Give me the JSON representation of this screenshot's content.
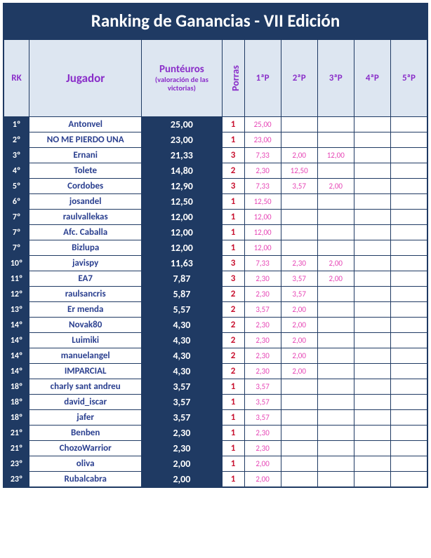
{
  "title": "Ranking de Ganancias - VII Edición",
  "colors": {
    "header_bg": "#1f3a63",
    "header_text": "#ffffff",
    "th_bg": "#dde6f1",
    "th_text": "#8a2ec9",
    "border": "#1f3a63",
    "rank_bg": "#1f3a63",
    "rank_text": "#ffffff",
    "player_text": "#2a3f8f",
    "points_bg": "#1f3a63",
    "points_text": "#ffffff",
    "porras_text": "#c8102e",
    "p_text": "#e645b5"
  },
  "headers": {
    "rk": "RK",
    "player": "Jugador",
    "points_main": "Puntéuros",
    "points_sub": "(valoración de las victorias)",
    "porras": "Porras",
    "p1": "1ªP",
    "p2": "2ªP",
    "p3": "3ªP",
    "p4": "4ªP",
    "p5": "5ªP"
  },
  "rows": [
    {
      "rk": "1º",
      "player": "Antonvel",
      "points": "25,00",
      "porras": "1",
      "p1": "25,00",
      "p2": "",
      "p3": "",
      "p4": "",
      "p5": ""
    },
    {
      "rk": "2º",
      "player": "NO ME PIERDO UNA",
      "points": "23,00",
      "porras": "1",
      "p1": "23,00",
      "p2": "",
      "p3": "",
      "p4": "",
      "p5": ""
    },
    {
      "rk": "3º",
      "player": "Ernani",
      "points": "21,33",
      "porras": "3",
      "p1": "7,33",
      "p2": "2,00",
      "p3": "12,00",
      "p4": "",
      "p5": ""
    },
    {
      "rk": "4º",
      "player": "Tolete",
      "points": "14,80",
      "porras": "2",
      "p1": "2,30",
      "p2": "12,50",
      "p3": "",
      "p4": "",
      "p5": ""
    },
    {
      "rk": "5º",
      "player": "Cordobes",
      "points": "12,90",
      "porras": "3",
      "p1": "7,33",
      "p2": "3,57",
      "p3": "2,00",
      "p4": "",
      "p5": ""
    },
    {
      "rk": "6º",
      "player": "josandel",
      "points": "12,50",
      "porras": "1",
      "p1": "12,50",
      "p2": "",
      "p3": "",
      "p4": "",
      "p5": ""
    },
    {
      "rk": "7º",
      "player": "raulvallekas",
      "points": "12,00",
      "porras": "1",
      "p1": "12,00",
      "p2": "",
      "p3": "",
      "p4": "",
      "p5": ""
    },
    {
      "rk": "7º",
      "player": "Afc. Caballa",
      "points": "12,00",
      "porras": "1",
      "p1": "12,00",
      "p2": "",
      "p3": "",
      "p4": "",
      "p5": ""
    },
    {
      "rk": "7º",
      "player": "Bizlupa",
      "points": "12,00",
      "porras": "1",
      "p1": "12,00",
      "p2": "",
      "p3": "",
      "p4": "",
      "p5": ""
    },
    {
      "rk": "10º",
      "player": "javispy",
      "points": "11,63",
      "porras": "3",
      "p1": "7,33",
      "p2": "2,30",
      "p3": "2,00",
      "p4": "",
      "p5": ""
    },
    {
      "rk": "11º",
      "player": "EA7",
      "points": "7,87",
      "porras": "3",
      "p1": "2,30",
      "p2": "3,57",
      "p3": "2,00",
      "p4": "",
      "p5": ""
    },
    {
      "rk": "12º",
      "player": "raulsancris",
      "points": "5,87",
      "porras": "2",
      "p1": "2,30",
      "p2": "3,57",
      "p3": "",
      "p4": "",
      "p5": ""
    },
    {
      "rk": "13º",
      "player": "Er menda",
      "points": "5,57",
      "porras": "2",
      "p1": "3,57",
      "p2": "2,00",
      "p3": "",
      "p4": "",
      "p5": ""
    },
    {
      "rk": "14º",
      "player": "Novak80",
      "points": "4,30",
      "porras": "2",
      "p1": "2,30",
      "p2": "2,00",
      "p3": "",
      "p4": "",
      "p5": ""
    },
    {
      "rk": "14º",
      "player": "Luimiki",
      "points": "4,30",
      "porras": "2",
      "p1": "2,30",
      "p2": "2,00",
      "p3": "",
      "p4": "",
      "p5": ""
    },
    {
      "rk": "14º",
      "player": "manuelangel",
      "points": "4,30",
      "porras": "2",
      "p1": "2,30",
      "p2": "2,00",
      "p3": "",
      "p4": "",
      "p5": ""
    },
    {
      "rk": "14º",
      "player": "IMPARCIAL",
      "points": "4,30",
      "porras": "2",
      "p1": "2,30",
      "p2": "2,00",
      "p3": "",
      "p4": "",
      "p5": ""
    },
    {
      "rk": "18º",
      "player": "charly sant andreu",
      "points": "3,57",
      "porras": "1",
      "p1": "3,57",
      "p2": "",
      "p3": "",
      "p4": "",
      "p5": ""
    },
    {
      "rk": "18º",
      "player": "david_iscar",
      "points": "3,57",
      "porras": "1",
      "p1": "3,57",
      "p2": "",
      "p3": "",
      "p4": "",
      "p5": ""
    },
    {
      "rk": "18º",
      "player": "jafer",
      "points": "3,57",
      "porras": "1",
      "p1": "3,57",
      "p2": "",
      "p3": "",
      "p4": "",
      "p5": ""
    },
    {
      "rk": "21º",
      "player": "Benben",
      "points": "2,30",
      "porras": "1",
      "p1": "2,30",
      "p2": "",
      "p3": "",
      "p4": "",
      "p5": ""
    },
    {
      "rk": "21º",
      "player": "ChozoWarrior",
      "points": "2,30",
      "porras": "1",
      "p1": "2,30",
      "p2": "",
      "p3": "",
      "p4": "",
      "p5": ""
    },
    {
      "rk": "23º",
      "player": "oliva",
      "points": "2,00",
      "porras": "1",
      "p1": "2,00",
      "p2": "",
      "p3": "",
      "p4": "",
      "p5": ""
    },
    {
      "rk": "23º",
      "player": "Rubalcabra",
      "points": "2,00",
      "porras": "1",
      "p1": "2,00",
      "p2": "",
      "p3": "",
      "p4": "",
      "p5": ""
    }
  ]
}
